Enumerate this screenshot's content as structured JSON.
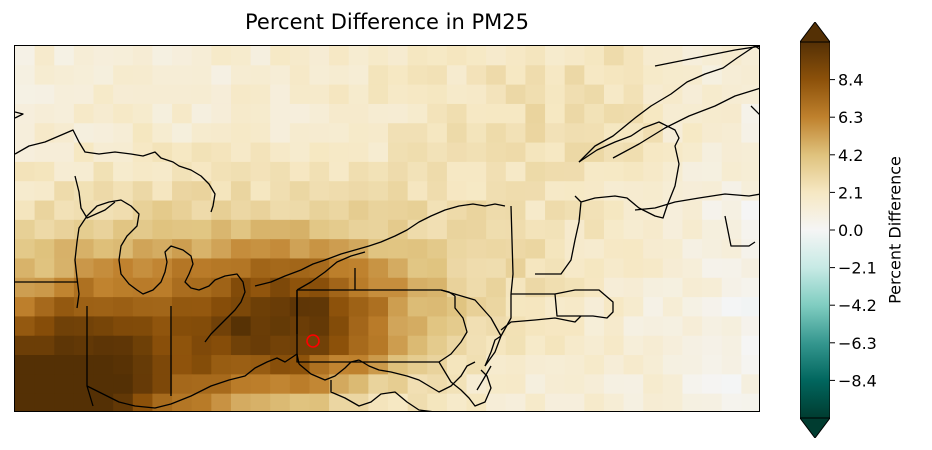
{
  "title": "Percent Difference in PM25",
  "colorbar": {
    "label": "Percent Difference",
    "ticks": [
      "8.4",
      "6.3",
      "4.2",
      "2.1",
      "0.0",
      "−2.1",
      "−4.2",
      "−6.3",
      "−8.4"
    ],
    "tick_values": [
      8.4,
      6.3,
      4.2,
      2.1,
      0.0,
      -2.1,
      -4.2,
      -6.3,
      -8.4
    ],
    "range": [
      -10.5,
      10.5
    ],
    "extend": "both",
    "colormap": "BrBG_r",
    "colors": [
      "#003c30",
      "#01665e",
      "#35978f",
      "#80cdc1",
      "#c7eae5",
      "#f5f5f5",
      "#f6e8c3",
      "#dfc27d",
      "#bf812d",
      "#8c510a",
      "#543005"
    ]
  },
  "marker": {
    "name": "site-marker",
    "color": "#ff0000"
  }
}
